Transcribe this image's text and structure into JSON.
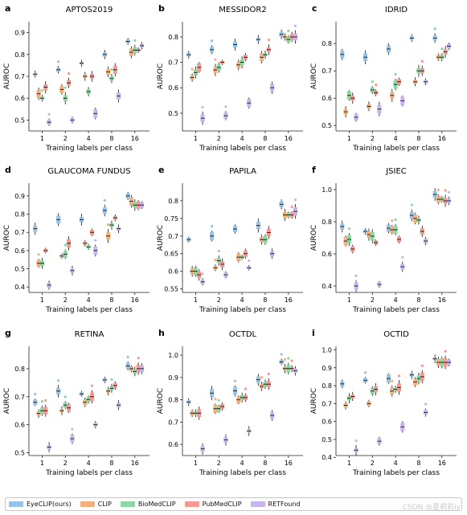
{
  "legend": [
    {
      "name": "EyeCLIP(ours)",
      "color": "#97c3e6"
    },
    {
      "name": "CLIP",
      "color": "#f4b07d"
    },
    {
      "name": "BioMedCLIP",
      "color": "#8bd9a0"
    },
    {
      "name": "PubMedCLIP",
      "color": "#f39a92"
    },
    {
      "name": "RETFound",
      "color": "#c8b5ee"
    }
  ],
  "watermark": "CSDN @夏莉莉iy",
  "chart_data": [
    {
      "type": "box",
      "panel": "a",
      "title": "APTOS2019",
      "xlabel": "Training labels per class",
      "ylabel": "AUROC",
      "categories": [
        "1",
        "2",
        "4",
        "8",
        "16"
      ],
      "ylim": [
        0.45,
        0.95
      ],
      "yticks": [
        0.5,
        0.6,
        0.7,
        0.8,
        0.9
      ],
      "series": [
        {
          "values": [
            0.71,
            0.73,
            0.76,
            0.8,
            0.86
          ]
        },
        {
          "values": [
            0.62,
            0.64,
            0.7,
            0.72,
            0.81
          ]
        },
        {
          "values": [
            0.6,
            0.6,
            0.63,
            0.69,
            0.82
          ]
        },
        {
          "values": [
            0.65,
            0.67,
            0.7,
            0.73,
            0.82
          ]
        },
        {
          "values": [
            0.49,
            0.5,
            0.53,
            0.61,
            0.84
          ]
        }
      ]
    },
    {
      "type": "box",
      "panel": "b",
      "title": "MESSIDOR2",
      "xlabel": "Training labels per class",
      "ylabel": "AUROC",
      "categories": [
        "1",
        "2",
        "4",
        "8",
        "16"
      ],
      "ylim": [
        0.43,
        0.86
      ],
      "yticks": [
        0.5,
        0.6,
        0.7,
        0.8
      ],
      "series": [
        {
          "values": [
            0.73,
            0.75,
            0.77,
            0.79,
            0.81
          ]
        },
        {
          "values": [
            0.64,
            0.67,
            0.69,
            0.72,
            0.8
          ]
        },
        {
          "values": [
            0.66,
            0.68,
            0.7,
            0.73,
            0.79
          ]
        },
        {
          "values": [
            0.68,
            0.7,
            0.72,
            0.75,
            0.8
          ]
        },
        {
          "values": [
            0.48,
            0.49,
            0.54,
            0.6,
            0.8
          ]
        }
      ]
    },
    {
      "type": "box",
      "panel": "c",
      "title": "IDRID",
      "xlabel": "Training labels per class",
      "ylabel": "AUROC",
      "categories": [
        "1",
        "2",
        "4",
        "8",
        "16"
      ],
      "ylim": [
        0.48,
        0.88
      ],
      "yticks": [
        0.5,
        0.6,
        0.7,
        0.8
      ],
      "series": [
        {
          "values": [
            0.76,
            0.75,
            0.78,
            0.82,
            0.82
          ]
        },
        {
          "values": [
            0.55,
            0.57,
            0.61,
            0.66,
            0.75
          ]
        },
        {
          "values": [
            0.61,
            0.63,
            0.65,
            0.7,
            0.75
          ]
        },
        {
          "values": [
            0.6,
            0.62,
            0.66,
            0.7,
            0.77
          ]
        },
        {
          "values": [
            0.53,
            0.56,
            0.59,
            0.66,
            0.79
          ]
        }
      ]
    },
    {
      "type": "box",
      "panel": "d",
      "title": "GLAUCOMA FUNDUS",
      "xlabel": "Training labels per class",
      "ylabel": "AUROC",
      "categories": [
        "1",
        "2",
        "4",
        "8",
        "16"
      ],
      "ylim": [
        0.37,
        0.97
      ],
      "yticks": [
        0.4,
        0.5,
        0.6,
        0.7,
        0.8,
        0.9
      ],
      "series": [
        {
          "values": [
            0.72,
            0.77,
            0.77,
            0.82,
            0.9
          ]
        },
        {
          "values": [
            0.53,
            0.57,
            0.64,
            0.68,
            0.87
          ]
        },
        {
          "values": [
            0.53,
            0.58,
            0.62,
            0.74,
            0.85
          ]
        },
        {
          "values": [
            0.6,
            0.64,
            0.7,
            0.78,
            0.85
          ]
        },
        {
          "values": [
            0.41,
            0.49,
            0.6,
            0.72,
            0.85
          ]
        }
      ]
    },
    {
      "type": "box",
      "panel": "e",
      "title": "PAPILA",
      "xlabel": "Training labels per class",
      "ylabel": "AUROC",
      "categories": [
        "1",
        "2",
        "4",
        "8",
        "16"
      ],
      "ylim": [
        0.54,
        0.85
      ],
      "yticks": [
        0.55,
        0.6,
        0.65,
        0.7,
        0.75,
        0.8
      ],
      "series": [
        {
          "values": [
            0.69,
            0.7,
            0.72,
            0.73,
            0.79
          ]
        },
        {
          "values": [
            0.6,
            0.61,
            0.64,
            0.69,
            0.76
          ]
        },
        {
          "values": [
            0.6,
            0.63,
            0.64,
            0.69,
            0.76
          ]
        },
        {
          "values": [
            0.59,
            0.62,
            0.65,
            0.71,
            0.76
          ]
        },
        {
          "values": [
            0.57,
            0.59,
            0.61,
            0.65,
            0.77
          ]
        }
      ]
    },
    {
      "type": "box",
      "panel": "f",
      "title": "JSIEC",
      "xlabel": "Training labels per class",
      "ylabel": "AUROC",
      "categories": [
        "1",
        "2",
        "4",
        "8",
        "16"
      ],
      "ylim": [
        0.36,
        1.04
      ],
      "yticks": [
        0.4,
        0.6,
        0.8,
        1.0
      ],
      "series": [
        {
          "values": [
            0.77,
            0.74,
            0.76,
            0.84,
            0.97
          ]
        },
        {
          "values": [
            0.68,
            0.72,
            0.75,
            0.82,
            0.94
          ]
        },
        {
          "values": [
            0.69,
            0.71,
            0.75,
            0.81,
            0.94
          ]
        },
        {
          "values": [
            0.63,
            0.67,
            0.69,
            0.74,
            0.93
          ]
        },
        {
          "values": [
            0.4,
            0.41,
            0.52,
            0.68,
            0.93
          ]
        }
      ]
    },
    {
      "type": "box",
      "panel": "g",
      "title": "RETINA",
      "xlabel": "Training labels per class",
      "ylabel": "AUROC",
      "categories": [
        "1",
        "2",
        "4",
        "8",
        "16"
      ],
      "ylim": [
        0.49,
        0.88
      ],
      "yticks": [
        0.5,
        0.6,
        0.7,
        0.8
      ],
      "series": [
        {
          "values": [
            0.68,
            0.72,
            0.71,
            0.76,
            0.81
          ]
        },
        {
          "values": [
            0.64,
            0.65,
            0.68,
            0.72,
            0.8
          ]
        },
        {
          "values": [
            0.65,
            0.67,
            0.69,
            0.73,
            0.79
          ]
        },
        {
          "values": [
            0.65,
            0.66,
            0.7,
            0.74,
            0.8
          ]
        },
        {
          "values": [
            0.52,
            0.55,
            0.6,
            0.67,
            0.8
          ]
        }
      ]
    },
    {
      "type": "box",
      "panel": "h",
      "title": "OCTDL",
      "xlabel": "Training labels per class",
      "ylabel": "AUROC",
      "categories": [
        "1",
        "2",
        "4",
        "8",
        "16"
      ],
      "ylim": [
        0.55,
        1.04
      ],
      "yticks": [
        0.6,
        0.7,
        0.8,
        0.9,
        1.0
      ],
      "series": [
        {
          "values": [
            0.79,
            0.83,
            0.84,
            0.89,
            0.97
          ]
        },
        {
          "values": [
            0.74,
            0.76,
            0.8,
            0.86,
            0.94
          ]
        },
        {
          "values": [
            0.74,
            0.76,
            0.81,
            0.87,
            0.94
          ]
        },
        {
          "values": [
            0.74,
            0.77,
            0.81,
            0.87,
            0.94
          ]
        },
        {
          "values": [
            0.58,
            0.62,
            0.66,
            0.73,
            0.93
          ]
        }
      ]
    },
    {
      "type": "box",
      "panel": "i",
      "title": "OCTID",
      "xlabel": "Training labels per class",
      "ylabel": "AUROC",
      "categories": [
        "1",
        "2",
        "4",
        "8",
        "16"
      ],
      "ylim": [
        0.41,
        1.02
      ],
      "yticks": [
        0.4,
        0.5,
        0.6,
        0.7,
        0.8,
        0.9,
        1.0
      ],
      "series": [
        {
          "values": [
            0.81,
            0.83,
            0.84,
            0.86,
            0.95
          ]
        },
        {
          "values": [
            0.69,
            0.7,
            0.77,
            0.82,
            0.93
          ]
        },
        {
          "values": [
            0.73,
            0.77,
            0.78,
            0.84,
            0.93
          ]
        },
        {
          "values": [
            0.74,
            0.78,
            0.79,
            0.85,
            0.93
          ]
        },
        {
          "values": [
            0.44,
            0.49,
            0.57,
            0.65,
            0.93
          ]
        }
      ]
    }
  ]
}
